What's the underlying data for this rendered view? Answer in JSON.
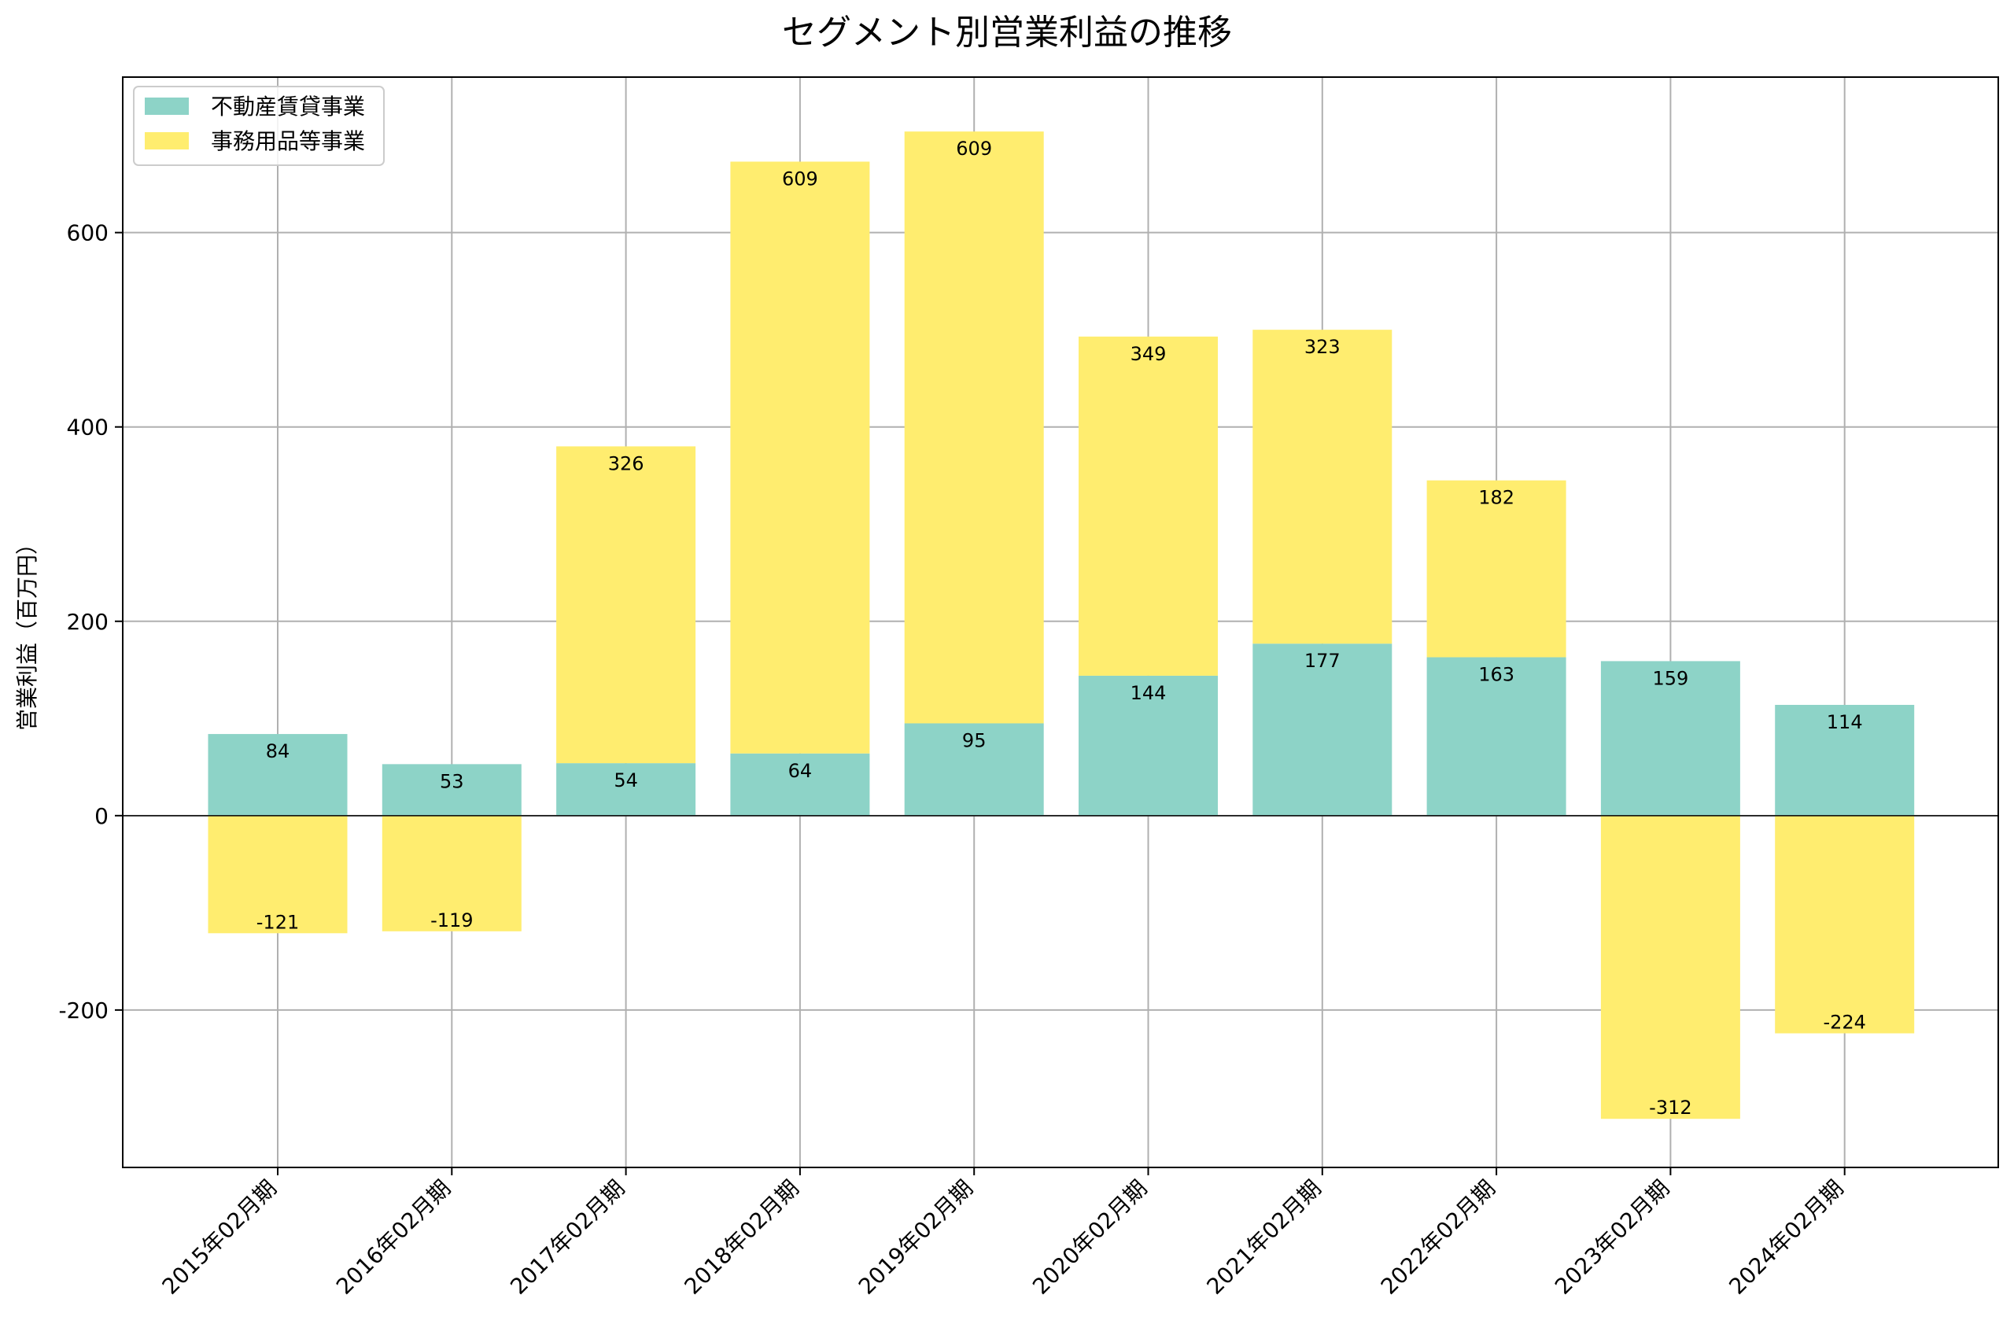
{
  "chart_data": {
    "type": "bar",
    "stacked": true,
    "title": "セグメント別営業利益の推移",
    "xlabel": "",
    "ylabel": "営業利益（百万円）",
    "ylim": [
      -362,
      760
    ],
    "yticks": [
      -200,
      0,
      200,
      400,
      600
    ],
    "grid": true,
    "legend_position": "top-left",
    "categories": [
      "2015年02月期",
      "2016年02月期",
      "2017年02月期",
      "2018年02月期",
      "2019年02月期",
      "2020年02月期",
      "2021年02月期",
      "2022年02月期",
      "2023年02月期",
      "2024年02月期"
    ],
    "series": [
      {
        "name": "不動産賃貸事業",
        "color": "#8dd3c7",
        "values": [
          84,
          53,
          54,
          64,
          95,
          144,
          177,
          163,
          159,
          114
        ]
      },
      {
        "name": "事務用品等事業",
        "color": "#ffed6f",
        "values": [
          -121,
          -119,
          326,
          609,
          609,
          349,
          323,
          182,
          -312,
          -224
        ]
      }
    ]
  }
}
